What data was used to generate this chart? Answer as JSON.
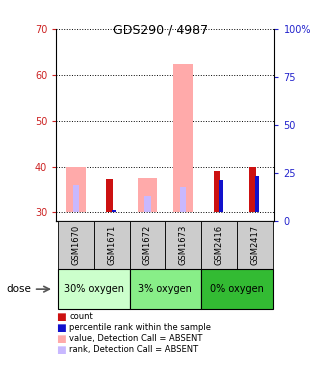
{
  "title": "GDS290 / 4987",
  "samples": [
    "GSM1670",
    "GSM1671",
    "GSM1672",
    "GSM1673",
    "GSM2416",
    "GSM2417"
  ],
  "ylim_left": [
    28,
    70
  ],
  "ylim_right": [
    0,
    100
  ],
  "yticks_left": [
    30,
    40,
    50,
    60,
    70
  ],
  "yticks_right": [
    0,
    25,
    50,
    75,
    100
  ],
  "bar_bottom": 30,
  "bars": {
    "absent_value": [
      40.0,
      0,
      37.5,
      62.5,
      0,
      0
    ],
    "absent_rank": [
      36.0,
      0,
      33.5,
      35.5,
      0,
      0
    ],
    "count": [
      0,
      37.2,
      0,
      0,
      39.0,
      40.0
    ],
    "pct_rank": [
      0,
      30.5,
      0,
      0,
      37.0,
      38.0
    ]
  },
  "colors": {
    "count": "#cc1111",
    "pct_rank": "#1111cc",
    "absent_value": "#ffaaaa",
    "absent_rank": "#c8b8ff",
    "left_axis": "#cc2222",
    "right_axis": "#2222cc",
    "sample_box_bg": "#cccccc"
  },
  "group_defs": [
    [
      0,
      1,
      "30% oxygen",
      "#ccffcc"
    ],
    [
      2,
      3,
      "3% oxygen",
      "#88ee88"
    ],
    [
      4,
      5,
      "0% oxygen",
      "#33bb33"
    ]
  ],
  "legend": [
    {
      "label": "count",
      "color": "#cc1111"
    },
    {
      "label": "percentile rank within the sample",
      "color": "#1111cc"
    },
    {
      "label": "value, Detection Call = ABSENT",
      "color": "#ffaaaa"
    },
    {
      "label": "rank, Detection Call = ABSENT",
      "color": "#c8b8ff"
    }
  ]
}
